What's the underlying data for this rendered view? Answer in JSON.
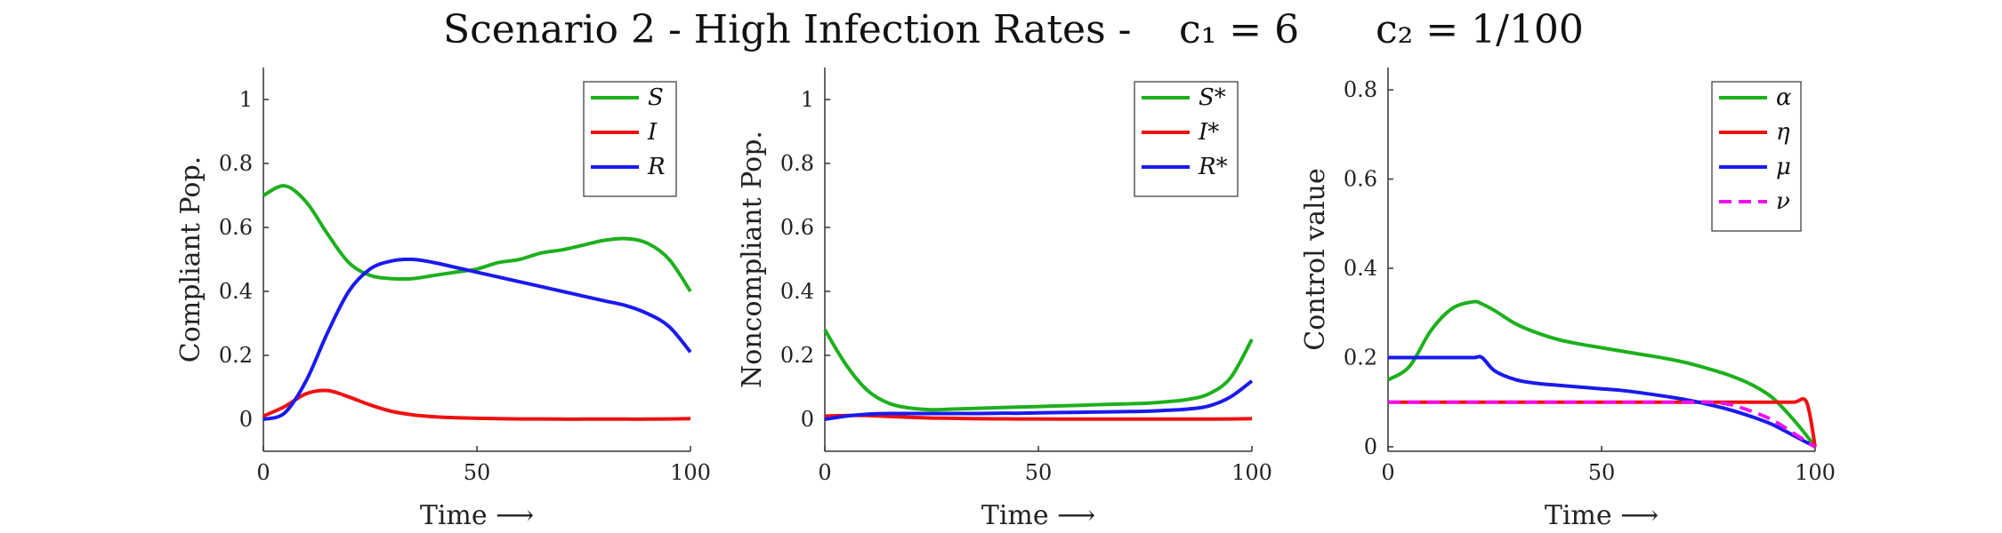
{
  "title": {
    "main": "Scenario 2 - High Infection Rates -",
    "c1": "c₁ = 6",
    "c2": "c₂ = 1/100"
  },
  "chart_data": [
    {
      "type": "line",
      "xlabel": "Time ⟶",
      "ylabel": "Compliant Pop.",
      "xlim": [
        0,
        100
      ],
      "ylim": [
        -0.1,
        1.1
      ],
      "xticks": [
        0,
        50,
        100
      ],
      "yticks": [
        0,
        0.2,
        0.4,
        0.6,
        0.8,
        1
      ],
      "legend": "top-right",
      "x": [
        0,
        5,
        10,
        15,
        20,
        25,
        30,
        35,
        40,
        45,
        50,
        55,
        60,
        65,
        70,
        75,
        80,
        85,
        90,
        95,
        100
      ],
      "series": [
        {
          "name": "S",
          "color": "#1db01d",
          "dashed": false,
          "values": [
            0.7,
            0.73,
            0.68,
            0.58,
            0.49,
            0.45,
            0.44,
            0.44,
            0.45,
            0.46,
            0.47,
            0.49,
            0.5,
            0.52,
            0.53,
            0.545,
            0.56,
            0.565,
            0.55,
            0.5,
            0.4
          ]
        },
        {
          "name": "I",
          "color": "#ee1111",
          "dashed": false,
          "values": [
            0.01,
            0.04,
            0.08,
            0.09,
            0.07,
            0.045,
            0.025,
            0.014,
            0.008,
            0.005,
            0.003,
            0.002,
            0.001,
            0.001,
            0.0005,
            0.0005,
            0.0005,
            0.0005,
            0.0005,
            0.001,
            0.002
          ]
        },
        {
          "name": "R",
          "color": "#1a1aee",
          "dashed": false,
          "values": [
            0.0,
            0.02,
            0.12,
            0.27,
            0.4,
            0.47,
            0.495,
            0.5,
            0.49,
            0.475,
            0.46,
            0.445,
            0.43,
            0.415,
            0.4,
            0.385,
            0.37,
            0.355,
            0.33,
            0.29,
            0.21
          ]
        }
      ]
    },
    {
      "type": "line",
      "xlabel": "Time ⟶",
      "ylabel": "Noncompliant Pop.",
      "xlim": [
        0,
        100
      ],
      "ylim": [
        -0.1,
        1.1
      ],
      "xticks": [
        0,
        50,
        100
      ],
      "yticks": [
        0,
        0.2,
        0.4,
        0.6,
        0.8,
        1
      ],
      "legend": "top-right",
      "x": [
        0,
        5,
        10,
        15,
        20,
        25,
        30,
        35,
        40,
        45,
        50,
        55,
        60,
        65,
        70,
        75,
        80,
        85,
        90,
        95,
        100
      ],
      "series": [
        {
          "name": "S*",
          "color": "#1db01d",
          "dashed": false,
          "values": [
            0.28,
            0.17,
            0.09,
            0.05,
            0.035,
            0.03,
            0.032,
            0.034,
            0.036,
            0.038,
            0.04,
            0.042,
            0.044,
            0.046,
            0.048,
            0.05,
            0.055,
            0.062,
            0.08,
            0.13,
            0.25
          ]
        },
        {
          "name": "I*",
          "color": "#ee1111",
          "dashed": false,
          "values": [
            0.01,
            0.012,
            0.012,
            0.009,
            0.006,
            0.004,
            0.003,
            0.002,
            0.0015,
            0.001,
            0.001,
            0.0008,
            0.0008,
            0.0008,
            0.0008,
            0.0008,
            0.0008,
            0.0008,
            0.0008,
            0.001,
            0.002
          ]
        },
        {
          "name": "R*",
          "color": "#1a1aee",
          "dashed": false,
          "values": [
            0.0,
            0.01,
            0.016,
            0.018,
            0.018,
            0.018,
            0.018,
            0.018,
            0.019,
            0.019,
            0.02,
            0.021,
            0.022,
            0.023,
            0.024,
            0.025,
            0.028,
            0.032,
            0.042,
            0.07,
            0.12
          ]
        }
      ]
    },
    {
      "type": "line",
      "xlabel": "Time ⟶",
      "ylabel": "Control value",
      "xlim": [
        0,
        100
      ],
      "ylim": [
        -0.01,
        0.85
      ],
      "xticks": [
        0,
        50,
        100
      ],
      "yticks": [
        0,
        0.2,
        0.4,
        0.6,
        0.8
      ],
      "legend": "top-right",
      "x": [
        0,
        5,
        10,
        15,
        20,
        22,
        25,
        30,
        35,
        40,
        45,
        50,
        55,
        60,
        65,
        70,
        75,
        80,
        85,
        90,
        95,
        98,
        100
      ],
      "series": [
        {
          "name": "α",
          "color": "#1db01d",
          "dashed": false,
          "values": [
            0.15,
            0.18,
            0.26,
            0.31,
            0.325,
            0.32,
            0.305,
            0.275,
            0.255,
            0.24,
            0.23,
            0.222,
            0.214,
            0.206,
            0.198,
            0.188,
            0.175,
            0.16,
            0.14,
            0.11,
            0.06,
            0.025,
            0.0
          ]
        },
        {
          "name": "η",
          "color": "#ee1111",
          "dashed": false,
          "values": [
            0.1,
            0.1,
            0.1,
            0.1,
            0.1,
            0.1,
            0.1,
            0.1,
            0.1,
            0.1,
            0.1,
            0.1,
            0.1,
            0.1,
            0.1,
            0.1,
            0.1,
            0.1,
            0.1,
            0.1,
            0.1,
            0.1,
            0.0
          ]
        },
        {
          "name": "μ",
          "color": "#1a1aee",
          "dashed": false,
          "values": [
            0.2,
            0.2,
            0.2,
            0.2,
            0.2,
            0.2,
            0.17,
            0.15,
            0.142,
            0.138,
            0.134,
            0.13,
            0.126,
            0.12,
            0.113,
            0.105,
            0.095,
            0.083,
            0.068,
            0.05,
            0.025,
            0.01,
            0.0
          ]
        },
        {
          "name": "ν",
          "color": "#ee11ee",
          "dashed": true,
          "values": [
            0.1,
            0.1,
            0.1,
            0.1,
            0.1,
            0.1,
            0.1,
            0.1,
            0.1,
            0.1,
            0.1,
            0.1,
            0.1,
            0.1,
            0.1,
            0.1,
            0.1,
            0.095,
            0.08,
            0.06,
            0.03,
            0.012,
            0.0
          ]
        }
      ]
    }
  ]
}
